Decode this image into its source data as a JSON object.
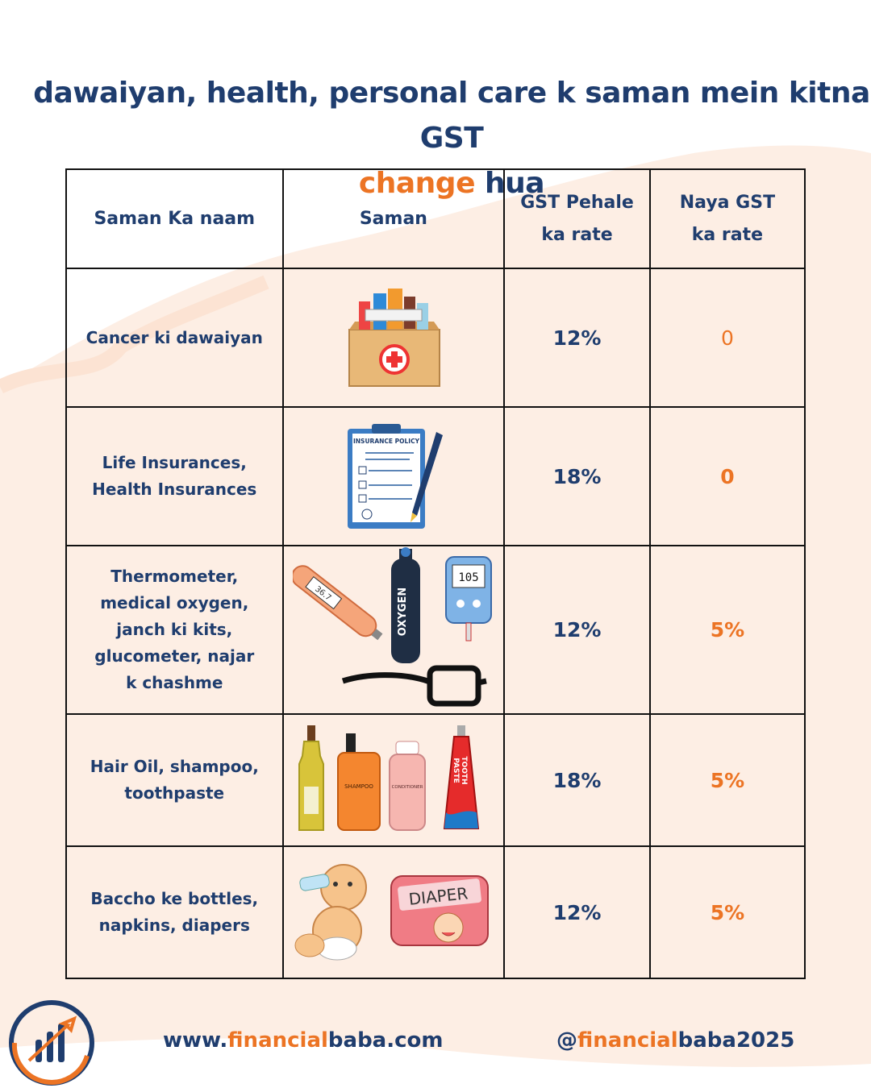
{
  "title": {
    "line1": "dawaiyan, health, personal care  k saman mein kitna GST",
    "accent_word": "change",
    "line2_rest": " hua"
  },
  "table": {
    "headers": [
      "Saman Ka naam",
      "Saman",
      "GST Pehale ka rate",
      "Naya GST ka rate"
    ],
    "rows": [
      {
        "name": "Cancer ki dawaiyan",
        "old_rate": "12%",
        "new_rate": "0",
        "image": "medicine-box"
      },
      {
        "name": "Life Insurances, Health Insurances",
        "old_rate": "18%",
        "new_rate": "0",
        "image": "insurance-policy-clipboard"
      },
      {
        "name": "Thermometer, medical oxygen, janch ki kits, glucometer, najar k chashme",
        "old_rate": "12%",
        "new_rate": "5%",
        "image": "medical-devices"
      },
      {
        "name": "Hair Oil, shampoo, toothpaste",
        "old_rate": "18%",
        "new_rate": "5%",
        "image": "personal-care-bottles"
      },
      {
        "name": "Baccho ke bottles, napkins, diapers",
        "old_rate": "12%",
        "new_rate": "5%",
        "image": "baby-and-diaper"
      }
    ]
  },
  "image_text": {
    "policy": "INSURANCE POLICY",
    "oxygen": "OXYGEN",
    "thermo": "36.7",
    "gluco": "105",
    "shampoo": "SHAMPOO",
    "conditioner": "CONDITIONER",
    "toothpaste1": "TOOTH",
    "toothpaste2": "PASTE",
    "diaper": "DIAPER"
  },
  "footer": {
    "website_pre": "www.",
    "website_accent": "financial",
    "website_mid": "baba",
    "website_post": ".com",
    "handle_pre": "@",
    "handle_accent": "financial",
    "handle_post": "baba2025"
  },
  "colors": {
    "navy": "#1f3d6e",
    "orange": "#ec7424",
    "peach": "#fdeee4"
  }
}
